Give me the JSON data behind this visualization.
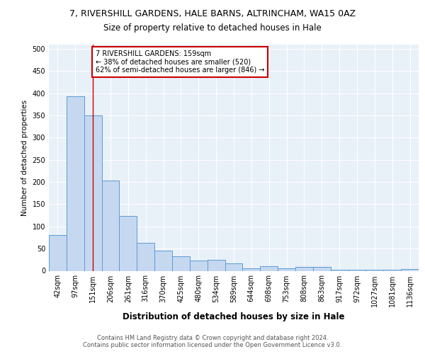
{
  "title": "7, RIVERSHILL GARDENS, HALE BARNS, ALTRINCHAM, WA15 0AZ",
  "subtitle": "Size of property relative to detached houses in Hale",
  "xlabel": "Distribution of detached houses by size in Hale",
  "ylabel": "Number of detached properties",
  "bar_labels": [
    "42sqm",
    "97sqm",
    "151sqm",
    "206sqm",
    "261sqm",
    "316sqm",
    "370sqm",
    "425sqm",
    "480sqm",
    "534sqm",
    "589sqm",
    "644sqm",
    "698sqm",
    "753sqm",
    "808sqm",
    "863sqm",
    "917sqm",
    "972sqm",
    "1027sqm",
    "1081sqm",
    "1136sqm"
  ],
  "bar_values": [
    80,
    393,
    350,
    204,
    123,
    63,
    45,
    32,
    23,
    25,
    16,
    5,
    10,
    6,
    9,
    8,
    3,
    2,
    2,
    2,
    4
  ],
  "bar_color": "#c5d8f0",
  "bar_edge_color": "#5b9bd5",
  "red_line_index": 2,
  "red_line_color": "#cc0000",
  "annotation_line1": "7 RIVERSHILL GARDENS: 159sqm",
  "annotation_line2": "← 38% of detached houses are smaller (520)",
  "annotation_line3": "62% of semi-detached houses are larger (846) →",
  "annotation_box_edge": "#cc0000",
  "ylim": [
    0,
    510
  ],
  "yticks": [
    0,
    50,
    100,
    150,
    200,
    250,
    300,
    350,
    400,
    450,
    500
  ],
  "footer_line1": "Contains HM Land Registry data © Crown copyright and database right 2024.",
  "footer_line2": "Contains public sector information licensed under the Open Government Licence v3.0.",
  "plot_bg_color": "#e8f0f8",
  "grid_color": "white",
  "title_fontsize": 9,
  "subtitle_fontsize": 8.5,
  "xlabel_fontsize": 8.5,
  "ylabel_fontsize": 7.5,
  "tick_fontsize": 7,
  "annot_fontsize": 7,
  "footer_fontsize": 6
}
